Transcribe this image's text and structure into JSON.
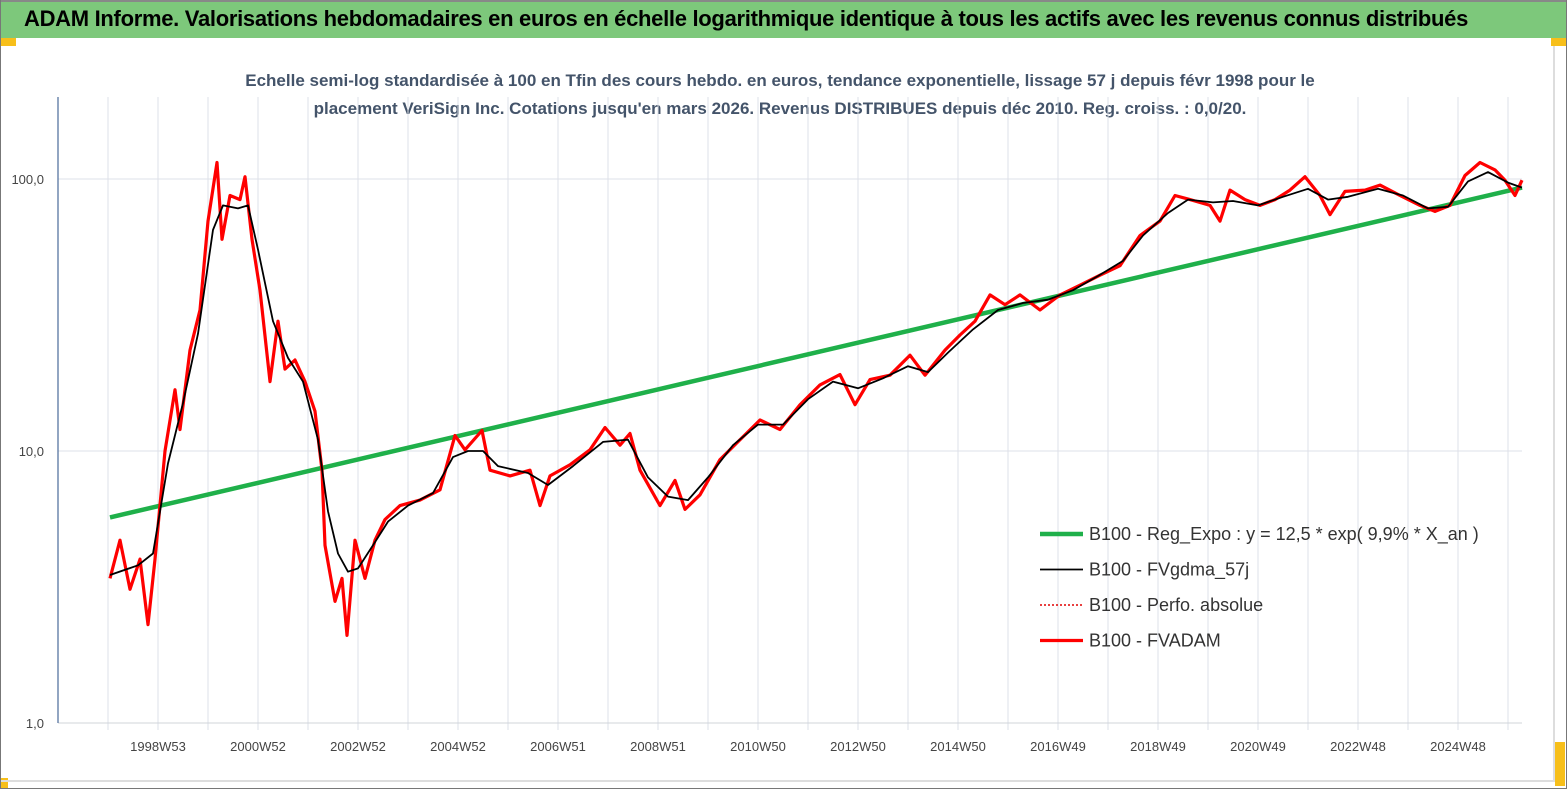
{
  "header": {
    "title": "ADAM Informe. Valorisations hebdomadaires en euros en échelle logarithmique identique à tous les actifs avec les revenus connus distribués"
  },
  "colors": {
    "header_bg": "#7dc87b",
    "corner": "#f7bf1a",
    "reg": "#1fb04a",
    "smooth": "#000000",
    "perfo": "#e00000",
    "fvadam": "#ff0000"
  },
  "chart_data": {
    "type": "line",
    "title_lines": [
      "Echelle semi-log standardisée à 100 en Tfin des cours hebdo. en euros, tendance exponentielle, lissage 57 j depuis févr 1998 pour le",
      "placement VeriSign Inc. Cotations jusqu'en mars 2026. Revenus DISTRIBUES depuis déc 2010. Reg. croiss. : 0,0/20."
    ],
    "yscale": "log",
    "ylim": [
      1,
      100
    ],
    "xlim": [
      1997.0,
      2026.3
    ],
    "yticks": [
      "1,0",
      "10,0",
      "100,0"
    ],
    "xticks": [
      {
        "label": "1998W53",
        "year": 1999.0
      },
      {
        "label": "2000W52",
        "year": 2001.0
      },
      {
        "label": "2002W52",
        "year": 2003.0
      },
      {
        "label": "2004W52",
        "year": 2005.0
      },
      {
        "label": "2006W51",
        "year": 2007.0
      },
      {
        "label": "2008W51",
        "year": 2009.0
      },
      {
        "label": "2010W50",
        "year": 2011.0
      },
      {
        "label": "2012W50",
        "year": 2013.0
      },
      {
        "label": "2014W50",
        "year": 2015.0
      },
      {
        "label": "2016W49",
        "year": 2017.0
      },
      {
        "label": "2018W49",
        "year": 2019.0
      },
      {
        "label": "2020W49",
        "year": 2021.0
      },
      {
        "label": "2022W48",
        "year": 2023.0
      },
      {
        "label": "2024W48",
        "year": 2025.0
      }
    ],
    "grid": true,
    "legend_position": "right",
    "series": [
      {
        "name": "B100 - Reg_Expo : y = 12,5 * exp( 9,9% *  X_an )",
        "style": "thick-green",
        "x": [
          1998.04,
          2026.28
        ],
        "y": [
          5.7,
          93
        ]
      },
      {
        "name": "B100 - FVgdma_57j",
        "style": "thin-black",
        "x": [
          1998.04,
          1998.6,
          1998.9,
          1999.2,
          1999.5,
          1999.8,
          2000.1,
          2000.3,
          2000.6,
          2000.8,
          2001.0,
          2001.3,
          2001.6,
          2001.9,
          2002.2,
          2002.4,
          2002.6,
          2002.8,
          2003.0,
          2003.3,
          2003.6,
          2004.0,
          2004.5,
          2004.9,
          2005.2,
          2005.5,
          2005.8,
          2006.4,
          2006.8,
          2007.3,
          2007.9,
          2008.4,
          2008.8,
          2009.2,
          2009.6,
          2010.0,
          2010.5,
          2011.0,
          2011.5,
          2012.0,
          2012.5,
          2013.0,
          2013.5,
          2014.0,
          2014.4,
          2014.8,
          2015.3,
          2015.8,
          2016.3,
          2016.8,
          2017.3,
          2017.8,
          2018.3,
          2018.7,
          2019.2,
          2019.6,
          2020.1,
          2020.5,
          2021.0,
          2021.5,
          2022.0,
          2022.4,
          2022.8,
          2023.4,
          2023.9,
          2024.4,
          2024.8,
          2025.2,
          2025.6,
          2026.0,
          2026.28
        ],
        "y": [
          3.5,
          3.8,
          4.2,
          9,
          15,
          27,
          65,
          80,
          78,
          80,
          55,
          30,
          22,
          18,
          11,
          6,
          4.2,
          3.6,
          3.7,
          4.5,
          5.5,
          6.3,
          7,
          9.5,
          10,
          10,
          8.8,
          8.3,
          7.5,
          8.8,
          10.8,
          11,
          8,
          6.8,
          6.6,
          8,
          10.5,
          12.5,
          12.5,
          15.5,
          18,
          17,
          18.5,
          20.5,
          19.5,
          23,
          28,
          33,
          35,
          36,
          39,
          44,
          50,
          62,
          75,
          84,
          82,
          83,
          80,
          86,
          92,
          84,
          86,
          92,
          87,
          78,
          79,
          98,
          106,
          97,
          93
        ]
      },
      {
        "name": "B100 - Perfo. absolue",
        "style": "dotted-red",
        "x": [],
        "y": []
      },
      {
        "name": "B100 - FVADAM",
        "style": "thick-red",
        "x": [
          1998.04,
          1998.24,
          1998.44,
          1998.64,
          1998.8,
          1998.94,
          1999.14,
          1999.34,
          1999.44,
          1999.64,
          1999.84,
          2000.0,
          2000.18,
          2000.28,
          2000.44,
          2000.64,
          2000.74,
          2000.88,
          2001.04,
          2001.24,
          2001.4,
          2001.54,
          2001.74,
          2001.94,
          2002.14,
          2002.28,
          2002.34,
          2002.54,
          2002.68,
          2002.78,
          2002.94,
          2003.14,
          2003.34,
          2003.54,
          2003.84,
          2004.24,
          2004.64,
          2004.94,
          2005.14,
          2005.48,
          2005.64,
          2006.04,
          2006.44,
          2006.64,
          2006.84,
          2007.24,
          2007.64,
          2007.94,
          2008.24,
          2008.44,
          2008.64,
          2009.04,
          2009.34,
          2009.54,
          2009.84,
          2010.24,
          2010.64,
          2011.04,
          2011.44,
          2011.84,
          2012.24,
          2012.64,
          2012.94,
          2013.24,
          2013.64,
          2014.04,
          2014.34,
          2014.74,
          2015.04,
          2015.34,
          2015.64,
          2015.94,
          2016.24,
          2016.64,
          2017.04,
          2017.44,
          2017.84,
          2018.24,
          2018.64,
          2019.04,
          2019.34,
          2019.64,
          2020.04,
          2020.24,
          2020.44,
          2020.74,
          2021.04,
          2021.34,
          2021.64,
          2021.94,
          2022.24,
          2022.44,
          2022.74,
          2023.14,
          2023.44,
          2023.84,
          2024.24,
          2024.54,
          2024.84,
          2025.14,
          2025.44,
          2025.74,
          2025.94,
          2026.14,
          2026.28
        ],
        "y": [
          3.4,
          4.7,
          3.1,
          4.0,
          2.3,
          4.0,
          10,
          16.8,
          12,
          23.5,
          33,
          70,
          115,
          60,
          87,
          84,
          102,
          60,
          39,
          18,
          30,
          20,
          21.6,
          18,
          14,
          8.5,
          4.5,
          2.8,
          3.4,
          2.1,
          4.7,
          3.4,
          4.7,
          5.6,
          6.3,
          6.6,
          7.2,
          11.4,
          10.1,
          11.9,
          8.5,
          8.1,
          8.5,
          6.3,
          8.1,
          8.9,
          10.1,
          12.2,
          10.5,
          11.6,
          8.5,
          6.3,
          7.8,
          6.1,
          6.9,
          9.3,
          11,
          13,
          12,
          14.8,
          17.5,
          19.1,
          14.8,
          18.3,
          19,
          22.5,
          19,
          23.5,
          26.7,
          30,
          37.5,
          34.5,
          37.5,
          33,
          37.5,
          40.7,
          44.3,
          48,
          62,
          70,
          87,
          84,
          80,
          70,
          91,
          84,
          80,
          84,
          91,
          102,
          87,
          74,
          90,
          91,
          95,
          87,
          80,
          76,
          80,
          103,
          115,
          108,
          99,
          87,
          99
        ]
      }
    ]
  }
}
